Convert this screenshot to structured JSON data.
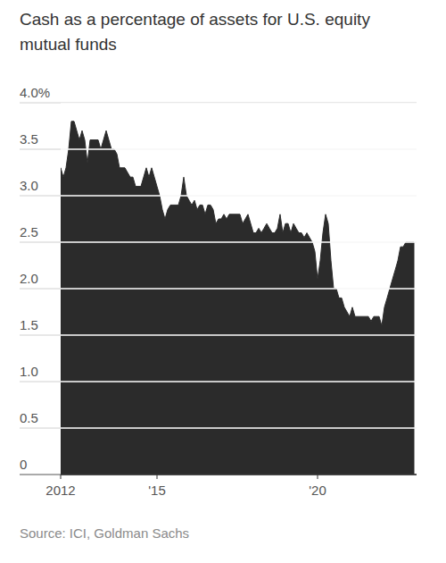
{
  "chart_data": {
    "type": "area",
    "title": "Cash as a percentage of assets for U.S. equity mutual funds",
    "source": "Source: ICI, Goldman Sachs",
    "color": "#2b2b2b",
    "grid": true,
    "x": [
      2012,
      2012.083,
      2012.167,
      2012.25,
      2012.333,
      2012.417,
      2012.5,
      2012.583,
      2012.667,
      2012.75,
      2012.833,
      2012.917,
      2013,
      2013.083,
      2013.167,
      2013.25,
      2013.333,
      2013.417,
      2013.5,
      2013.583,
      2013.667,
      2013.75,
      2013.833,
      2013.917,
      2014,
      2014.083,
      2014.167,
      2014.25,
      2014.333,
      2014.417,
      2014.5,
      2014.583,
      2014.667,
      2014.75,
      2014.833,
      2014.917,
      2015,
      2015.083,
      2015.167,
      2015.25,
      2015.333,
      2015.417,
      2015.5,
      2015.583,
      2015.667,
      2015.75,
      2015.833,
      2015.917,
      2016,
      2016.083,
      2016.167,
      2016.25,
      2016.333,
      2016.417,
      2016.5,
      2016.583,
      2016.667,
      2016.75,
      2016.833,
      2016.917,
      2017,
      2017.083,
      2017.167,
      2017.25,
      2017.333,
      2017.417,
      2017.5,
      2017.583,
      2017.667,
      2017.75,
      2017.833,
      2017.917,
      2018,
      2018.083,
      2018.167,
      2018.25,
      2018.333,
      2018.417,
      2018.5,
      2018.583,
      2018.667,
      2018.75,
      2018.833,
      2018.917,
      2019,
      2019.083,
      2019.167,
      2019.25,
      2019.333,
      2019.417,
      2019.5,
      2019.583,
      2019.667,
      2019.75,
      2019.833,
      2019.917,
      2020,
      2020.083,
      2020.167,
      2020.25,
      2020.333,
      2020.417,
      2020.5,
      2020.583,
      2020.667,
      2020.75,
      2020.833,
      2020.917,
      2021,
      2021.083,
      2021.167,
      2021.25,
      2021.333,
      2021.417,
      2021.5,
      2021.583,
      2021.667,
      2021.75,
      2021.833,
      2021.917,
      2022,
      2022.083,
      2022.167,
      2022.25,
      2022.333,
      2022.417,
      2022.5,
      2022.583,
      2022.667,
      2022.75,
      2022.833,
      2022.917,
      2023
    ],
    "values": [
      3.3,
      3.2,
      3.3,
      3.5,
      3.8,
      3.8,
      3.7,
      3.6,
      3.7,
      3.6,
      3.35,
      3.6,
      3.6,
      3.6,
      3.6,
      3.5,
      3.6,
      3.7,
      3.6,
      3.5,
      3.5,
      3.45,
      3.3,
      3.3,
      3.3,
      3.25,
      3.2,
      3.2,
      3.1,
      3.1,
      3.1,
      3.2,
      3.3,
      3.2,
      3.3,
      3.2,
      3.1,
      3.0,
      2.85,
      2.75,
      2.85,
      2.9,
      2.9,
      2.9,
      2.9,
      3.0,
      3.2,
      3.0,
      2.95,
      2.9,
      2.95,
      2.85,
      2.9,
      2.9,
      2.8,
      2.9,
      2.9,
      2.85,
      2.7,
      2.75,
      2.75,
      2.8,
      2.75,
      2.8,
      2.8,
      2.8,
      2.8,
      2.8,
      2.7,
      2.75,
      2.8,
      2.7,
      2.6,
      2.6,
      2.65,
      2.6,
      2.65,
      2.7,
      2.65,
      2.6,
      2.6,
      2.65,
      2.8,
      2.6,
      2.7,
      2.7,
      2.6,
      2.7,
      2.65,
      2.6,
      2.6,
      2.55,
      2.6,
      2.55,
      2.5,
      2.4,
      2.1,
      2.3,
      2.6,
      2.8,
      2.7,
      2.3,
      2.0,
      2.0,
      1.9,
      1.9,
      1.8,
      1.75,
      1.7,
      1.8,
      1.7,
      1.7,
      1.7,
      1.7,
      1.7,
      1.7,
      1.65,
      1.7,
      1.7,
      1.7,
      1.6,
      1.8,
      1.9,
      2.0,
      2.1,
      2.2,
      2.3,
      2.45,
      2.45,
      2.5,
      2.5,
      2.5,
      2.5
    ],
    "xlim": [
      2012,
      2023.083
    ],
    "xticks": [
      2012,
      {
        "value": 2015,
        "label": "'15"
      },
      {
        "value": 2020,
        "label": "'20"
      }
    ],
    "ylim": [
      0,
      4
    ],
    "yticks": [
      0,
      {
        "value": 0.5,
        "label": "0.5"
      },
      {
        "value": 1,
        "label": "1.0"
      },
      {
        "value": 1.5,
        "label": "1.5"
      },
      {
        "value": 2,
        "label": "2.0"
      },
      {
        "value": 2.5,
        "label": "2.5"
      },
      {
        "value": 3,
        "label": "3.0"
      },
      {
        "value": 3.5,
        "label": "3.5"
      },
      {
        "value": 4,
        "label": "4.0%"
      }
    ]
  }
}
